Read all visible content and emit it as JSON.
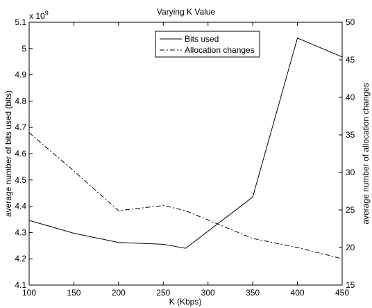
{
  "chart_data": {
    "type": "line",
    "title": "Varying K Value",
    "xlabel": "K (Kbps)",
    "ylabel_left": "average number of bits used (bits)",
    "ylabel_right": "average number of allocation changes",
    "y_left_multiplier": "x 10",
    "y_left_exponent": "9",
    "xlim": [
      100,
      450
    ],
    "ylim_left": [
      4.1,
      5.1
    ],
    "ylim_right": [
      15,
      50
    ],
    "x_ticks": [
      "100",
      "150",
      "200",
      "250",
      "300",
      "350",
      "400",
      "450"
    ],
    "y_left_ticks": [
      "4.1",
      "4.2",
      "4.3",
      "4.4",
      "4.5",
      "4.6",
      "4.7",
      "4.8",
      "4.9",
      "5",
      "5.1"
    ],
    "y_right_ticks": [
      "15",
      "20",
      "25",
      "30",
      "35",
      "40",
      "45",
      "50"
    ],
    "grid": false,
    "legend_position": "top-center",
    "series": [
      {
        "name": "Bits used",
        "axis": "left",
        "style": "solid",
        "color": "#000000",
        "x": [
          100,
          150,
          200,
          250,
          275,
          350,
          400,
          450
        ],
        "y": [
          4.346,
          4.297,
          4.262,
          4.255,
          4.24,
          4.435,
          5.04,
          4.968
        ]
      },
      {
        "name": "Allocation changes",
        "axis": "right",
        "style": "dashdot",
        "color": "#000000",
        "x": [
          100,
          150,
          200,
          250,
          275,
          350,
          400,
          450
        ],
        "y": [
          35.3,
          30.2,
          24.9,
          25.6,
          24.9,
          21.2,
          20.0,
          18.5
        ]
      }
    ]
  }
}
